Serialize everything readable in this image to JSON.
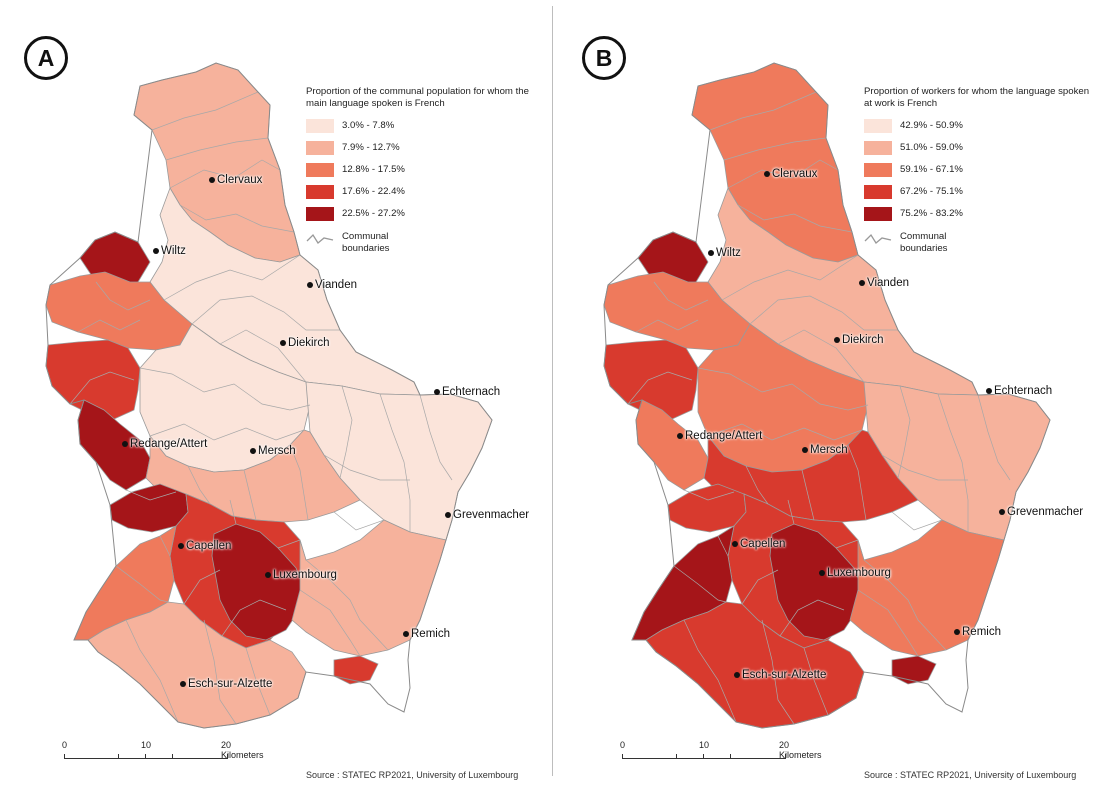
{
  "panels": [
    {
      "badge": "A",
      "legend_title": "Proportion of the communal population for whom the main language spoken is French",
      "classes": [
        {
          "label": "3.0% - 7.8%",
          "color": "#fbe4da"
        },
        {
          "label": "7.9% - 12.7%",
          "color": "#f6b29c"
        },
        {
          "label": "12.8% - 17.5%",
          "color": "#ef7a5c"
        },
        {
          "label": "17.6% - 22.4%",
          "color": "#d83a2e"
        },
        {
          "label": "22.5% - 27.2%",
          "color": "#a51519"
        }
      ],
      "boundary_label": "Communal boundaries",
      "cities": [
        "Clervaux",
        "Wiltz",
        "Vianden",
        "Diekirch",
        "Echternach",
        "Redange/Attert",
        "Mersch",
        "Grevenmacher",
        "Capellen",
        "Luxembourg",
        "Remich",
        "Esch-sur-Alzette"
      ],
      "scale": {
        "ticks": [
          "0",
          "10",
          "20 Kilometers"
        ]
      },
      "source": "Source : STATEC RP2021, University of Luxembourg"
    },
    {
      "badge": "B",
      "legend_title": "Proportion of workers for whom the language spoken at work is French",
      "classes": [
        {
          "label": "42.9% - 50.9%",
          "color": "#fbe4da"
        },
        {
          "label": "51.0% - 59.0%",
          "color": "#f6b29c"
        },
        {
          "label": "59.1% - 67.1%",
          "color": "#ef7a5c"
        },
        {
          "label": "67.2% - 75.1%",
          "color": "#d83a2e"
        },
        {
          "label": "75.2% - 83.2%",
          "color": "#a51519"
        }
      ],
      "boundary_label": "Communal boundaries",
      "cities": [
        "Clervaux",
        "Wiltz",
        "Vianden",
        "Diekirch",
        "Echternach",
        "Redange/Attert",
        "Mersch",
        "Grevenmacher",
        "Capellen",
        "Luxembourg",
        "Remich",
        "Esch-sur-Alzette"
      ],
      "scale": {
        "ticks": [
          "0",
          "10",
          "20 Kilometers"
        ]
      },
      "source": "Source : STATEC RP2021, University of Luxembourg"
    }
  ],
  "map_fill_classes": {
    "A": {
      "north": 1,
      "northeast": 0,
      "wiltz_west": 4,
      "west_band": 2,
      "west_edge": 3,
      "center": 0,
      "center_south": 1,
      "east": 0,
      "redange_strip": 4,
      "south_band": 4,
      "capital_core": 4,
      "capital_ring": 3,
      "south_west": 2,
      "south": 1,
      "southeast": 1,
      "remich": 3
    },
    "B": {
      "north": 2,
      "northeast": 1,
      "wiltz_west": 4,
      "west_band": 2,
      "west_edge": 3,
      "center": 2,
      "center_south": 3,
      "east": 1,
      "redange_strip": 2,
      "south_band": 3,
      "capital_core": 4,
      "capital_ring": 3,
      "south_west": 4,
      "south": 3,
      "southeast": 2,
      "remich": 4
    }
  }
}
